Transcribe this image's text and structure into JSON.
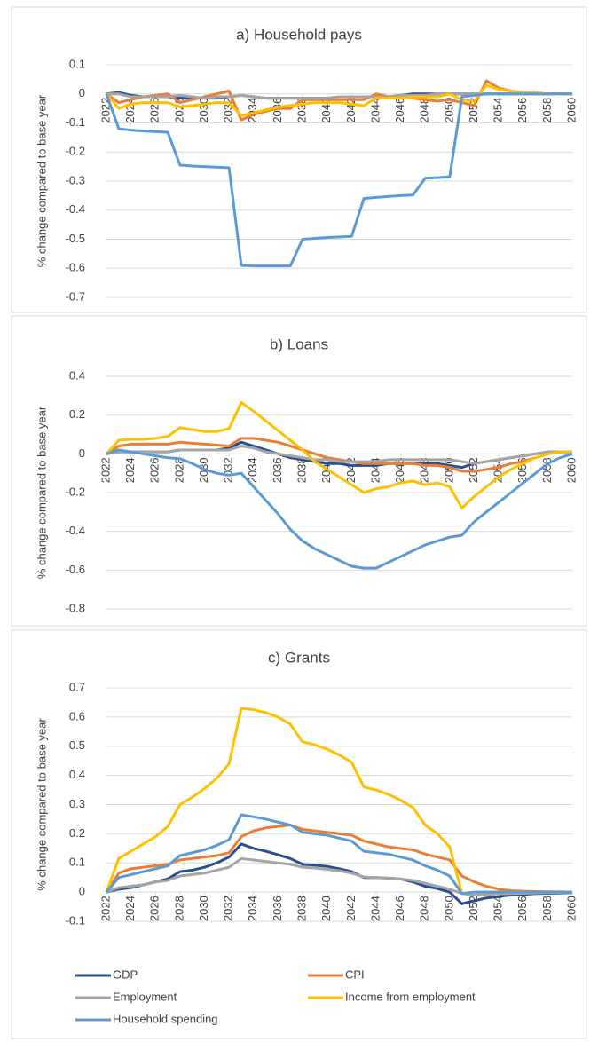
{
  "chart_data": [
    {
      "type": "line",
      "title": "a) Household pays",
      "y_label": "% change compared to base year",
      "x": [
        2022,
        2023,
        2024,
        2025,
        2026,
        2027,
        2028,
        2029,
        2030,
        2031,
        2032,
        2033,
        2034,
        2035,
        2036,
        2037,
        2038,
        2039,
        2040,
        2041,
        2042,
        2043,
        2044,
        2045,
        2046,
        2047,
        2048,
        2049,
        2050,
        2051,
        2052,
        2053,
        2054,
        2055,
        2056,
        2057,
        2058,
        2059,
        2060
      ],
      "xlim": [
        2022,
        2060
      ],
      "xticks": [
        2022,
        2024,
        2026,
        2028,
        2030,
        2032,
        2034,
        2036,
        2038,
        2040,
        2042,
        2044,
        2046,
        2048,
        2050,
        2052,
        2054,
        2056,
        2058,
        2060
      ],
      "ylim": [
        -0.7,
        0.1
      ],
      "yticks": [
        0.1,
        0,
        -0.1,
        -0.2,
        -0.3,
        -0.4,
        -0.5,
        -0.6,
        -0.7
      ],
      "grid": true,
      "series": [
        {
          "color": "#264f95",
          "values": [
            0,
            0.005,
            -0.005,
            -0.01,
            -0.01,
            -0.01,
            -0.015,
            -0.015,
            -0.015,
            -0.015,
            -0.01,
            -0.005,
            -0.01,
            -0.015,
            -0.015,
            -0.015,
            -0.015,
            -0.015,
            -0.015,
            -0.01,
            -0.01,
            -0.01,
            -0.01,
            -0.01,
            -0.005,
            0,
            0,
            0,
            0,
            0,
            0,
            0,
            0,
            0,
            0,
            0,
            0,
            0,
            0
          ]
        },
        {
          "color": "#ed7d31",
          "values": [
            0,
            -0.03,
            -0.02,
            -0.01,
            -0.005,
            0,
            -0.03,
            -0.02,
            -0.01,
            0,
            0.01,
            -0.09,
            -0.07,
            -0.06,
            -0.05,
            -0.05,
            -0.02,
            -0.02,
            -0.02,
            -0.02,
            -0.02,
            -0.02,
            0,
            -0.01,
            -0.01,
            -0.015,
            -0.02,
            -0.025,
            -0.02,
            -0.03,
            -0.04,
            0.045,
            0.02,
            0.01,
            0.005,
            0,
            0,
            0,
            0
          ]
        },
        {
          "color": "#a5a5a5",
          "values": [
            0,
            0,
            -0.01,
            -0.01,
            -0.01,
            -0.01,
            -0.005,
            -0.01,
            -0.015,
            -0.01,
            -0.01,
            -0.005,
            -0.01,
            -0.015,
            -0.015,
            -0.015,
            -0.015,
            -0.015,
            -0.015,
            -0.01,
            -0.01,
            -0.01,
            -0.01,
            -0.01,
            -0.005,
            -0.005,
            -0.005,
            0,
            0,
            0,
            0,
            0,
            0,
            0,
            0,
            0,
            0,
            0,
            0
          ]
        },
        {
          "color": "#ffc000",
          "values": [
            0,
            -0.05,
            -0.035,
            -0.03,
            -0.03,
            -0.03,
            -0.045,
            -0.04,
            -0.035,
            -0.03,
            -0.03,
            -0.075,
            -0.065,
            -0.055,
            -0.045,
            -0.04,
            -0.035,
            -0.03,
            -0.03,
            -0.03,
            -0.035,
            -0.04,
            -0.015,
            -0.015,
            -0.015,
            -0.01,
            -0.01,
            -0.01,
            0,
            -0.02,
            -0.025,
            0.03,
            0.015,
            0.01,
            0.005,
            0.005,
            0,
            0,
            0
          ]
        },
        {
          "color": "#5b9bd5",
          "values": [
            0,
            -0.12,
            -0.125,
            -0.128,
            -0.13,
            -0.132,
            -0.245,
            -0.248,
            -0.25,
            -0.252,
            -0.254,
            -0.59,
            -0.592,
            -0.592,
            -0.592,
            -0.592,
            -0.5,
            -0.497,
            -0.494,
            -0.492,
            -0.49,
            -0.36,
            -0.356,
            -0.353,
            -0.35,
            -0.348,
            -0.29,
            -0.288,
            -0.285,
            -0.01,
            -0.005,
            0,
            0,
            0,
            0,
            0,
            0,
            0,
            0
          ]
        }
      ]
    },
    {
      "type": "line",
      "title": "b) Loans",
      "y_label": "% change compared to base year",
      "x": [
        2022,
        2023,
        2024,
        2025,
        2026,
        2027,
        2028,
        2029,
        2030,
        2031,
        2032,
        2033,
        2034,
        2035,
        2036,
        2037,
        2038,
        2039,
        2040,
        2041,
        2042,
        2043,
        2044,
        2045,
        2046,
        2047,
        2048,
        2049,
        2050,
        2051,
        2052,
        2053,
        2054,
        2055,
        2056,
        2057,
        2058,
        2059,
        2060
      ],
      "xlim": [
        2022,
        2060
      ],
      "xticks": [
        2022,
        2024,
        2026,
        2028,
        2030,
        2032,
        2034,
        2036,
        2038,
        2040,
        2042,
        2044,
        2046,
        2048,
        2050,
        2052,
        2054,
        2056,
        2058,
        2060
      ],
      "ylim": [
        -0.8,
        0.4
      ],
      "yticks": [
        0.4,
        0.2,
        0,
        -0.2,
        -0.4,
        -0.6,
        -0.8
      ],
      "grid": true,
      "series": [
        {
          "color": "#264f95",
          "values": [
            0,
            0.01,
            0.01,
            0.01,
            0.01,
            0.01,
            0.02,
            0.02,
            0.02,
            0.02,
            0.03,
            0.06,
            0.04,
            0.02,
            0,
            -0.02,
            -0.03,
            -0.04,
            -0.05,
            -0.05,
            -0.06,
            -0.06,
            -0.06,
            -0.05,
            -0.05,
            -0.05,
            -0.05,
            -0.05,
            -0.06,
            -0.07,
            -0.05,
            -0.04,
            -0.03,
            -0.02,
            -0.01,
            0,
            0.01,
            0.01,
            0.01
          ]
        },
        {
          "color": "#ed7d31",
          "values": [
            0,
            0.04,
            0.05,
            0.05,
            0.05,
            0.05,
            0.06,
            0.055,
            0.05,
            0.045,
            0.04,
            0.08,
            0.08,
            0.07,
            0.06,
            0.04,
            0.02,
            0,
            -0.02,
            -0.03,
            -0.04,
            -0.05,
            -0.05,
            -0.05,
            -0.05,
            -0.05,
            -0.06,
            -0.06,
            -0.07,
            -0.09,
            -0.09,
            -0.08,
            -0.07,
            -0.05,
            -0.04,
            -0.02,
            0,
            0.01,
            0.01
          ]
        },
        {
          "color": "#a5a5a5",
          "values": [
            0,
            0.01,
            0.01,
            0.01,
            0.01,
            0.01,
            0.02,
            0.02,
            0.02,
            0.02,
            0.02,
            0.04,
            0.03,
            0.01,
            0,
            -0.01,
            -0.02,
            -0.03,
            -0.03,
            -0.04,
            -0.04,
            -0.04,
            -0.04,
            -0.03,
            -0.03,
            -0.03,
            -0.03,
            -0.03,
            -0.03,
            -0.04,
            -0.05,
            -0.04,
            -0.03,
            -0.02,
            -0.01,
            0,
            0.01,
            0.01,
            0.01
          ]
        },
        {
          "color": "#ffc000",
          "values": [
            0,
            0.07,
            0.075,
            0.075,
            0.08,
            0.09,
            0.135,
            0.125,
            0.115,
            0.115,
            0.13,
            0.265,
            0.22,
            0.17,
            0.12,
            0.07,
            0.02,
            -0.04,
            -0.08,
            -0.12,
            -0.16,
            -0.2,
            -0.18,
            -0.17,
            -0.15,
            -0.14,
            -0.16,
            -0.15,
            -0.17,
            -0.28,
            -0.22,
            -0.17,
            -0.12,
            -0.08,
            -0.05,
            -0.02,
            0,
            0.01,
            0.01
          ]
        },
        {
          "color": "#5b9bd5",
          "values": [
            0,
            0.02,
            0.01,
            0,
            -0.01,
            -0.02,
            -0.025,
            -0.05,
            -0.08,
            -0.1,
            -0.11,
            -0.1,
            -0.17,
            -0.24,
            -0.31,
            -0.39,
            -0.45,
            -0.49,
            -0.52,
            -0.55,
            -0.58,
            -0.59,
            -0.59,
            -0.56,
            -0.53,
            -0.5,
            -0.47,
            -0.45,
            -0.43,
            -0.42,
            -0.35,
            -0.3,
            -0.25,
            -0.2,
            -0.15,
            -0.1,
            -0.05,
            -0.02,
            0
          ]
        }
      ]
    },
    {
      "type": "line",
      "title": "c) Grants",
      "y_label": "% change compared to base year",
      "x": [
        2022,
        2023,
        2024,
        2025,
        2026,
        2027,
        2028,
        2029,
        2030,
        2031,
        2032,
        2033,
        2034,
        2035,
        2036,
        2037,
        2038,
        2039,
        2040,
        2041,
        2042,
        2043,
        2044,
        2045,
        2046,
        2047,
        2048,
        2049,
        2050,
        2051,
        2052,
        2053,
        2054,
        2055,
        2056,
        2057,
        2058,
        2059,
        2060
      ],
      "xlim": [
        2022,
        2060
      ],
      "xticks": [
        2022,
        2024,
        2026,
        2028,
        2030,
        2032,
        2034,
        2036,
        2038,
        2040,
        2042,
        2044,
        2046,
        2048,
        2050,
        2052,
        2054,
        2056,
        2058,
        2060
      ],
      "ylim": [
        -0.1,
        0.7
      ],
      "yticks": [
        0.7,
        0.6,
        0.5,
        0.4,
        0.3,
        0.2,
        0.1,
        0,
        -0.1
      ],
      "grid": true,
      "legend": "bottom",
      "series": [
        {
          "name": "GDP",
          "color": "#264f95",
          "values": [
            0,
            0.01,
            0.015,
            0.025,
            0.035,
            0.045,
            0.07,
            0.075,
            0.085,
            0.1,
            0.12,
            0.165,
            0.15,
            0.14,
            0.128,
            0.115,
            0.095,
            0.092,
            0.088,
            0.08,
            0.07,
            0.05,
            0.05,
            0.048,
            0.045,
            0.035,
            0.02,
            0.012,
            0,
            -0.04,
            -0.03,
            -0.02,
            -0.015,
            -0.01,
            -0.008,
            -0.005,
            -0.004,
            -0.003,
            -0.002
          ]
        },
        {
          "name": "CPI",
          "color": "#ed7d31",
          "values": [
            0,
            0.065,
            0.08,
            0.085,
            0.09,
            0.095,
            0.11,
            0.115,
            0.12,
            0.125,
            0.135,
            0.19,
            0.21,
            0.22,
            0.225,
            0.23,
            0.215,
            0.21,
            0.205,
            0.2,
            0.195,
            0.175,
            0.165,
            0.155,
            0.15,
            0.145,
            0.13,
            0.12,
            0.11,
            0.055,
            0.035,
            0.02,
            0.01,
            0.005,
            0.003,
            0.002,
            0.001,
            0.001,
            0
          ]
        },
        {
          "name": "Employment",
          "color": "#a5a5a5",
          "values": [
            0,
            0.015,
            0.02,
            0.025,
            0.035,
            0.04,
            0.055,
            0.06,
            0.065,
            0.075,
            0.085,
            0.115,
            0.11,
            0.105,
            0.1,
            0.095,
            0.085,
            0.082,
            0.078,
            0.073,
            0.065,
            0.052,
            0.05,
            0.048,
            0.045,
            0.04,
            0.03,
            0.02,
            0.01,
            -0.005,
            -0.01,
            -0.008,
            -0.006,
            -0.005,
            -0.004,
            -0.003,
            -0.002,
            -0.001,
            0
          ]
        },
        {
          "name": "Income from employment",
          "color": "#ffc000",
          "values": [
            0,
            0.115,
            0.14,
            0.165,
            0.19,
            0.225,
            0.3,
            0.325,
            0.355,
            0.39,
            0.44,
            0.63,
            0.625,
            0.615,
            0.6,
            0.575,
            0.515,
            0.505,
            0.49,
            0.47,
            0.445,
            0.36,
            0.35,
            0.335,
            0.315,
            0.29,
            0.23,
            0.2,
            0.155,
            -0.005,
            0,
            0,
            0,
            0,
            0,
            0,
            0,
            0,
            0
          ]
        },
        {
          "name": "Household spending",
          "color": "#5b9bd5",
          "values": [
            0,
            0.05,
            0.06,
            0.07,
            0.08,
            0.09,
            0.125,
            0.135,
            0.145,
            0.16,
            0.18,
            0.265,
            0.258,
            0.25,
            0.24,
            0.23,
            0.205,
            0.2,
            0.195,
            0.185,
            0.175,
            0.14,
            0.135,
            0.13,
            0.12,
            0.11,
            0.09,
            0.075,
            0.055,
            -0.005,
            0,
            0,
            0,
            0,
            0,
            0,
            0,
            0,
            0
          ]
        }
      ]
    }
  ]
}
